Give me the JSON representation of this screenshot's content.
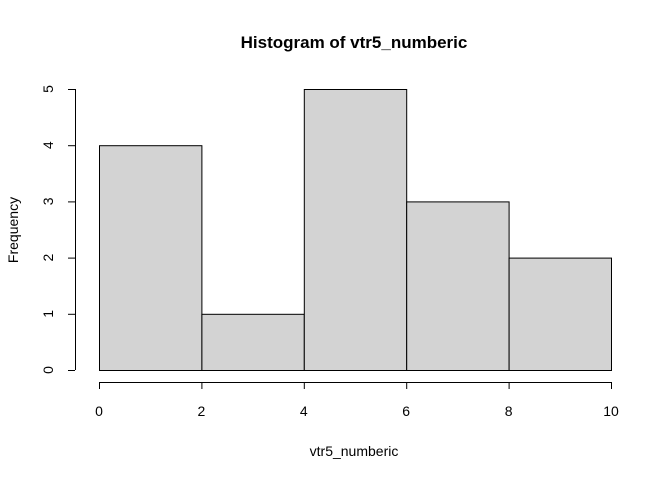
{
  "chart_data": {
    "type": "bar",
    "title": "Histogram of vtr5_numberic",
    "xlabel": "vtr5_numberic",
    "ylabel": "Frequency",
    "bins": [
      {
        "from": 0,
        "to": 2,
        "count": 4
      },
      {
        "from": 2,
        "to": 4,
        "count": 1
      },
      {
        "from": 4,
        "to": 6,
        "count": 5
      },
      {
        "from": 6,
        "to": 8,
        "count": 3
      },
      {
        "from": 8,
        "to": 10,
        "count": 2
      }
    ],
    "x_ticks": [
      0,
      2,
      4,
      6,
      8,
      10
    ],
    "y_ticks": [
      0,
      1,
      2,
      3,
      4,
      5
    ],
    "xlim": [
      0,
      10
    ],
    "ylim": [
      0,
      5
    ],
    "bar_fill": "#d3d3d3",
    "grid": false
  }
}
